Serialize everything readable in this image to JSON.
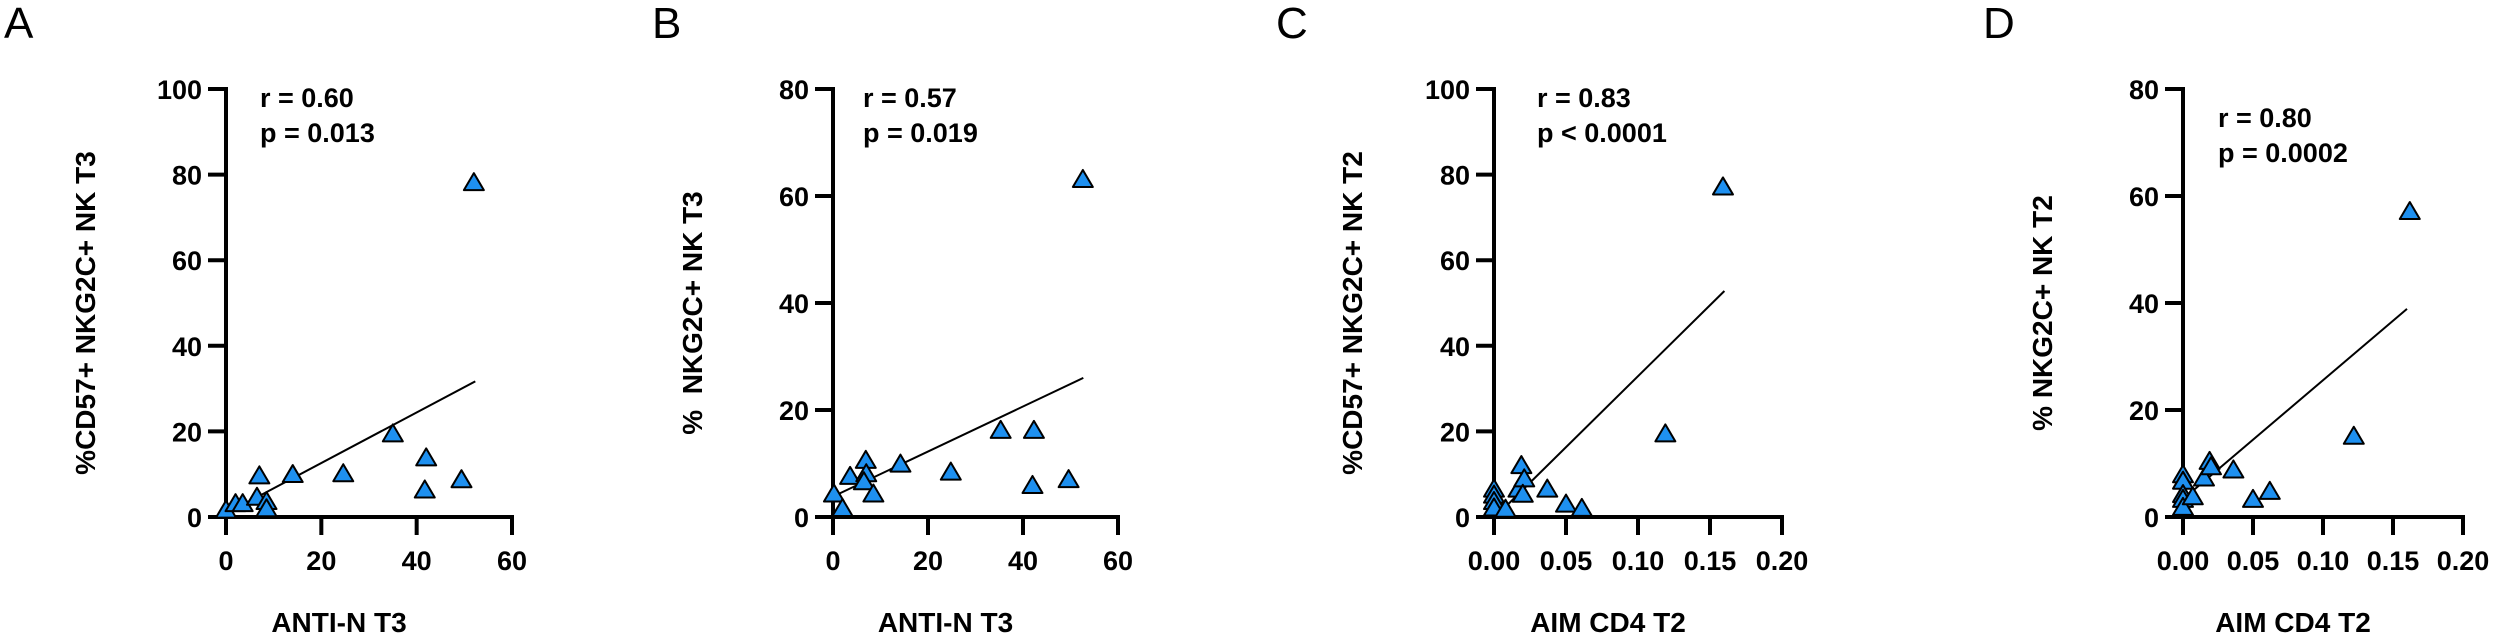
{
  "marker_color": "#1E90F0",
  "chart_data": [
    {
      "panel": "A",
      "type": "scatter",
      "xlabel": "ANTI-N T3",
      "ylabel": "%CD57+ NKG2C+ NK T3",
      "xlim": [
        0,
        60
      ],
      "ylim": [
        0,
        100
      ],
      "xticks": [
        "0",
        "20",
        "40",
        "60"
      ],
      "xtick_values": [
        0,
        20,
        40,
        60
      ],
      "yticks": [
        "0",
        "20",
        "40",
        "60",
        "80",
        "100"
      ],
      "ytick_values": [
        0,
        20,
        40,
        60,
        80,
        100
      ],
      "r_text": "r = 0.60",
      "p_text": "p = 0.013",
      "fit_line": [
        [
          0,
          0.8
        ],
        [
          52.3,
          31.7
        ]
      ],
      "points": [
        [
          0,
          1.5
        ],
        [
          2,
          3
        ],
        [
          3.5,
          3
        ],
        [
          6.5,
          4.5
        ],
        [
          7,
          9.5
        ],
        [
          8.5,
          3.5
        ],
        [
          8.5,
          1.8
        ],
        [
          14,
          9.8
        ],
        [
          24.6,
          10
        ],
        [
          35,
          19.3
        ],
        [
          42,
          13.7
        ],
        [
          41.7,
          6.2
        ],
        [
          49.4,
          8.6
        ],
        [
          52,
          78
        ]
      ]
    },
    {
      "panel": "B",
      "type": "scatter",
      "xlabel": "ANTI-N T3",
      "ylabel": "%  NKG2C+ NK T3",
      "xlim": [
        0,
        60
      ],
      "ylim": [
        0,
        80
      ],
      "xticks": [
        "0",
        "20",
        "40",
        "60"
      ],
      "xtick_values": [
        0,
        20,
        40,
        60
      ],
      "yticks": [
        "0",
        "20",
        "40",
        "60",
        "80"
      ],
      "ytick_values": [
        0,
        20,
        40,
        60,
        80
      ],
      "r_text": "r = 0.57",
      "p_text": "p = 0.019",
      "fit_line": [
        [
          0.2,
          3.9
        ],
        [
          52.7,
          26
        ]
      ],
      "points": [
        [
          0.2,
          4.2
        ],
        [
          2,
          1.5
        ],
        [
          3.6,
          7.5
        ],
        [
          6.9,
          10.5
        ],
        [
          7,
          8
        ],
        [
          6.5,
          6.5
        ],
        [
          8.5,
          4.2
        ],
        [
          14.2,
          9.8
        ],
        [
          24.8,
          8.3
        ],
        [
          35.3,
          16.1
        ],
        [
          42.3,
          16.1
        ],
        [
          42,
          5.8
        ],
        [
          49.6,
          6.9
        ],
        [
          52.6,
          63
        ]
      ]
    },
    {
      "panel": "C",
      "type": "scatter",
      "xlabel": "AIM CD4 T2",
      "ylabel": "%CD57+ NKG2C+ NK T2",
      "xlim": [
        0,
        0.2
      ],
      "ylim": [
        0,
        100
      ],
      "xticks": [
        "0.00",
        "0.05",
        "0.10",
        "0.15",
        "0.20"
      ],
      "xtick_values": [
        0,
        0.05,
        0.1,
        0.15,
        0.2
      ],
      "yticks": [
        "0",
        "20",
        "40",
        "60",
        "80",
        "100"
      ],
      "ytick_values": [
        0,
        20,
        40,
        60,
        80,
        100
      ],
      "r_text": "r = 0.83",
      "p_text": "p < 0.0001",
      "fit_line": [
        [
          0.002,
          0.4
        ],
        [
          0.16,
          52.8
        ]
      ],
      "points": [
        [
          0,
          6.4
        ],
        [
          0,
          5
        ],
        [
          0,
          3.5
        ],
        [
          0,
          2
        ],
        [
          0.008,
          1.7
        ],
        [
          0.017,
          6.4
        ],
        [
          0.019,
          11.9
        ],
        [
          0.021,
          8.8
        ],
        [
          0.02,
          5.2
        ],
        [
          0.037,
          6.4
        ],
        [
          0.05,
          2.9
        ],
        [
          0.061,
          1.9
        ],
        [
          0.119,
          19.3
        ],
        [
          0.159,
          77
        ]
      ]
    },
    {
      "panel": "D",
      "type": "scatter",
      "xlabel": "AIM CD4 T2",
      "ylabel": "% NKG2C+ NK T2",
      "xlim": [
        0,
        0.2
      ],
      "ylim": [
        0,
        80
      ],
      "xticks": [
        "0.00",
        "0.05",
        "0.10",
        "0.15",
        "0.20"
      ],
      "xtick_values": [
        0,
        0.05,
        0.1,
        0.15,
        0.2
      ],
      "yticks": [
        "0",
        "20",
        "40",
        "60",
        "80"
      ],
      "ytick_values": [
        0,
        20,
        40,
        60,
        80
      ],
      "r_text": "r = 0.80",
      "p_text": "p = 0.0002",
      "fit_line": [
        [
          0.003,
          4.0
        ],
        [
          0.16,
          38.9
        ]
      ],
      "points": [
        [
          0,
          7.8
        ],
        [
          0,
          6.6
        ],
        [
          0,
          4.1
        ],
        [
          0,
          3.2
        ],
        [
          0,
          1.7
        ],
        [
          0.007,
          3.7
        ],
        [
          0.015,
          7.2
        ],
        [
          0.019,
          10.3
        ],
        [
          0.02,
          9.3
        ],
        [
          0.036,
          8.7
        ],
        [
          0.05,
          3.2
        ],
        [
          0.062,
          4.7
        ],
        [
          0.122,
          15
        ],
        [
          0.162,
          57
        ]
      ]
    }
  ]
}
